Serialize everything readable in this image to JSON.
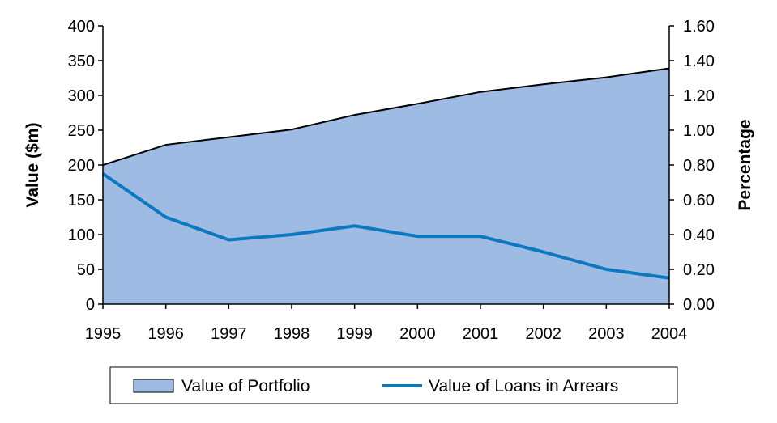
{
  "chart_data": {
    "type": "area",
    "x": [
      "1995",
      "1996",
      "1997",
      "1998",
      "1999",
      "2000",
      "2001",
      "2002",
      "2003",
      "2004"
    ],
    "series": [
      {
        "name": "Value of Portfolio",
        "type": "area",
        "axis": "left",
        "color": "#9dbbe3",
        "values": [
          200,
          229,
          240,
          251,
          272,
          288,
          305,
          316,
          326,
          339
        ]
      },
      {
        "name": "Value of Loans in Arrears",
        "type": "line",
        "axis": "right",
        "color": "#0b78c0",
        "values": [
          0.75,
          0.5,
          0.37,
          0.4,
          0.45,
          0.39,
          0.39,
          0.3,
          0.2,
          0.15
        ]
      }
    ],
    "ylabel": "Value ($m)",
    "y2label": "Percentage",
    "ylim": [
      0,
      400
    ],
    "y2lim": [
      0,
      1.6
    ],
    "yticks": [
      "0",
      "50",
      "100",
      "150",
      "200",
      "250",
      "300",
      "350",
      "400"
    ],
    "y2ticks": [
      "0.00",
      "0.20",
      "0.40",
      "0.60",
      "0.80",
      "1.00",
      "1.20",
      "1.40",
      "1.60"
    ],
    "grid": false,
    "legend_position": "bottom"
  }
}
